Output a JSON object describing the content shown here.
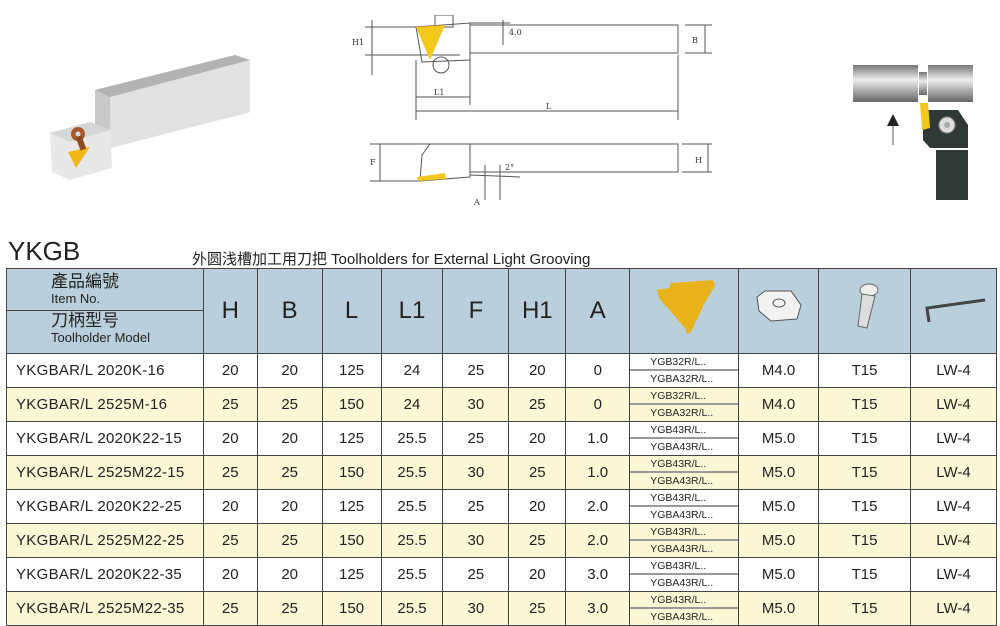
{
  "title": "YKGB",
  "subtitle_zh": "外圆浅槽加工用刀把",
  "subtitle_en": "Toolholders for External Light Grooving",
  "drawing": {
    "labels": {
      "h1": "H1",
      "top_offset": "4.0",
      "b": "B",
      "l1": "L1",
      "l": "L",
      "f": "F",
      "angle": "2°",
      "h": "H",
      "a": "A"
    }
  },
  "header": {
    "item_no_zh": "產品編號",
    "item_no_en": "Item No.",
    "model_zh": "刀柄型号",
    "model_en": "Toolholder Model",
    "columns": [
      "H",
      "B",
      "L",
      "L1",
      "F",
      "H1",
      "A"
    ],
    "icons": [
      "insert-icon",
      "shim-icon",
      "screw-icon",
      "wrench-icon"
    ]
  },
  "colors": {
    "header_bg": "#b9d0dc",
    "alt_row": "#fcf8d6",
    "insert": "#e8b21a"
  },
  "rows": [
    {
      "model": "YKGBAR/L  2020K-16",
      "H": "20",
      "B": "20",
      "L": "125",
      "L1": "24",
      "F": "25",
      "H1": "20",
      "A": "0",
      "insert": [
        "YGB32R/L..",
        "YGBA32R/L.."
      ],
      "shim": "M4.0",
      "screw": "T15",
      "wrench": "LW-4"
    },
    {
      "model": "YKGBAR/L  2525M-16",
      "H": "25",
      "B": "25",
      "L": "150",
      "L1": "24",
      "F": "30",
      "H1": "25",
      "A": "0",
      "insert": [
        "YGB32R/L..",
        "YGBA32R/L.."
      ],
      "shim": "M4.0",
      "screw": "T15",
      "wrench": "LW-4"
    },
    {
      "model": "YKGBAR/L  2020K22-15",
      "H": "20",
      "B": "20",
      "L": "125",
      "L1": "25.5",
      "F": "25",
      "H1": "20",
      "A": "1.0",
      "insert": [
        "YGB43R/L..",
        "YGBA43R/L.."
      ],
      "shim": "M5.0",
      "screw": "T15",
      "wrench": "LW-4"
    },
    {
      "model": "YKGBAR/L  2525M22-15",
      "H": "25",
      "B": "25",
      "L": "150",
      "L1": "25.5",
      "F": "30",
      "H1": "25",
      "A": "1.0",
      "insert": [
        "YGB43R/L..",
        "YGBA43R/L.."
      ],
      "shim": "M5.0",
      "screw": "T15",
      "wrench": "LW-4"
    },
    {
      "model": "YKGBAR/L  2020K22-25",
      "H": "20",
      "B": "20",
      "L": "125",
      "L1": "25.5",
      "F": "25",
      "H1": "20",
      "A": "2.0",
      "insert": [
        "YGB43R/L..",
        "YGBA43R/L.."
      ],
      "shim": "M5.0",
      "screw": "T15",
      "wrench": "LW-4"
    },
    {
      "model": "YKGBAR/L  2525M22-25",
      "H": "25",
      "B": "25",
      "L": "150",
      "L1": "25.5",
      "F": "30",
      "H1": "25",
      "A": "2.0",
      "insert": [
        "YGB43R/L..",
        "YGBA43R/L.."
      ],
      "shim": "M5.0",
      "screw": "T15",
      "wrench": "LW-4"
    },
    {
      "model": "YKGBAR/L  2020K22-35",
      "H": "20",
      "B": "20",
      "L": "125",
      "L1": "25.5",
      "F": "25",
      "H1": "20",
      "A": "3.0",
      "insert": [
        "YGB43R/L..",
        "YGBA43R/L.."
      ],
      "shim": "M5.0",
      "screw": "T15",
      "wrench": "LW-4"
    },
    {
      "model": "YKGBAR/L  2525M22-35",
      "H": "25",
      "B": "25",
      "L": "150",
      "L1": "25.5",
      "F": "30",
      "H1": "25",
      "A": "3.0",
      "insert": [
        "YGB43R/L..",
        "YGBA43R/L.."
      ],
      "shim": "M5.0",
      "screw": "T15",
      "wrench": "LW-4"
    }
  ]
}
